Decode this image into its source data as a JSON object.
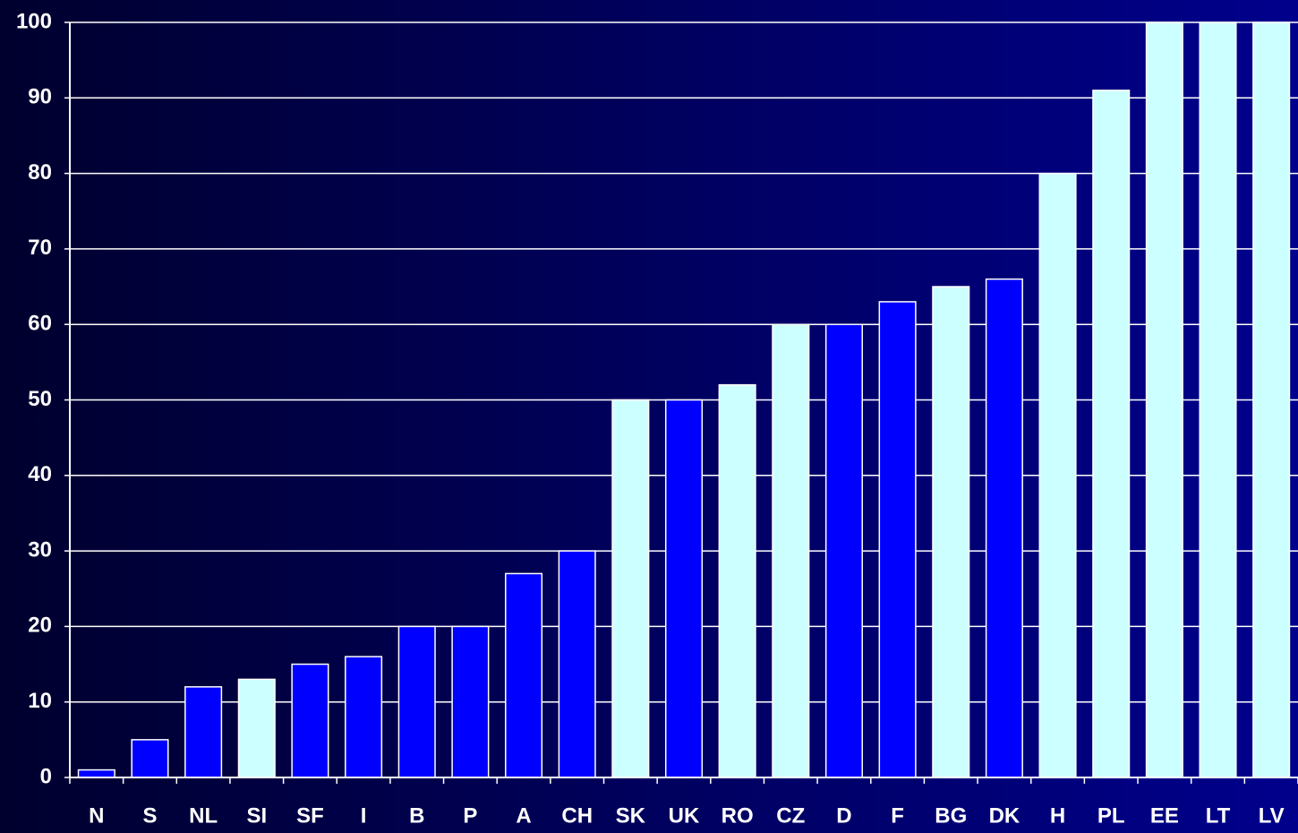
{
  "chart_data": {
    "type": "bar",
    "categories": [
      "N",
      "S",
      "NL",
      "SI",
      "SF",
      "I",
      "B",
      "P",
      "A",
      "CH",
      "SK",
      "UK",
      "RO",
      "CZ",
      "D",
      "F",
      "BG",
      "DK",
      "H",
      "PL",
      "EE",
      "LT",
      "LV"
    ],
    "values": [
      1,
      5,
      12,
      13,
      15,
      16,
      20,
      20,
      27,
      30,
      50,
      50,
      52,
      60,
      60,
      63,
      65,
      66,
      80,
      91,
      100,
      100,
      100
    ],
    "colors": [
      "#0000ff",
      "#0000ff",
      "#0000ff",
      "#ccffff",
      "#0000ff",
      "#0000ff",
      "#0000ff",
      "#0000ff",
      "#0000ff",
      "#0000ff",
      "#ccffff",
      "#0000ff",
      "#ccffff",
      "#ccffff",
      "#0000ff",
      "#0000ff",
      "#ccffff",
      "#0000ff",
      "#ccffff",
      "#ccffff",
      "#ccffff",
      "#ccffff",
      "#ccffff"
    ],
    "ylim": [
      0,
      100
    ],
    "yticks": [
      0,
      10,
      20,
      30,
      40,
      50,
      60,
      70,
      80,
      90,
      100
    ],
    "grid": true
  }
}
